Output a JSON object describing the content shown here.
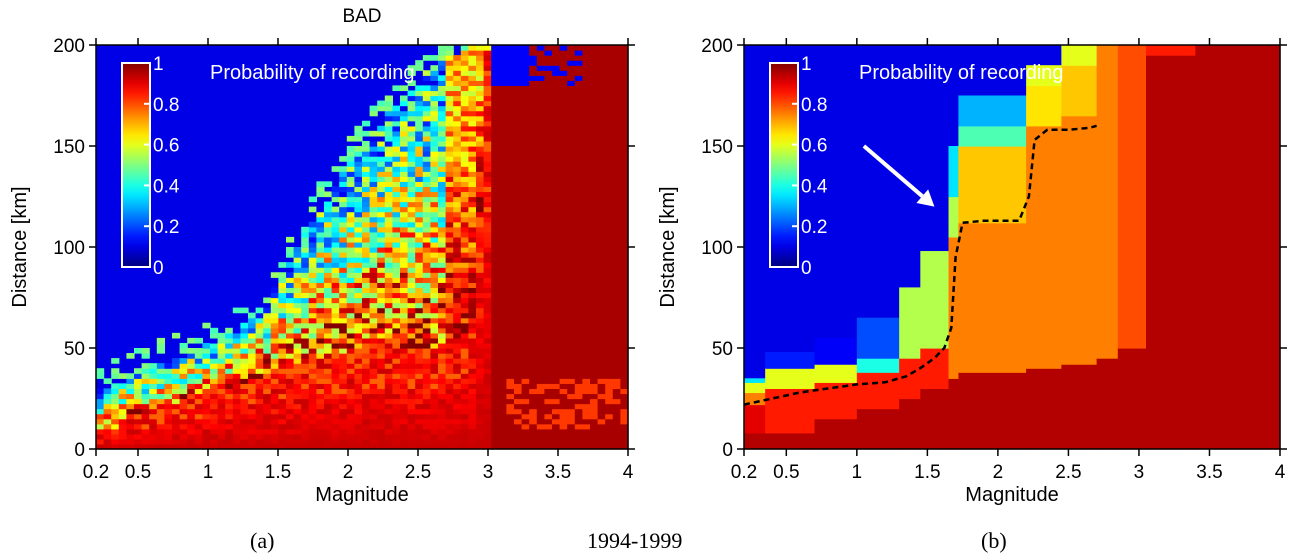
{
  "figure": {
    "caption_left": "(a)",
    "caption_center": "1994-1999",
    "caption_right": "(b)"
  },
  "chart_data": [
    {
      "type": "heatmap",
      "title": "BAD",
      "xlabel": "Magnitude",
      "ylabel": "Distance [km]",
      "annotation": "Probability of recording",
      "xlim": [
        0.2,
        4
      ],
      "ylim": [
        0,
        200
      ],
      "xticks": [
        0.2,
        0.5,
        1,
        1.5,
        2,
        2.5,
        3,
        3.5,
        4
      ],
      "xtick_labels": [
        "0.2",
        "0.5",
        "1",
        "1.5",
        "2",
        "2.5",
        "3",
        "3.5",
        "4"
      ],
      "yticks": [
        0,
        50,
        100,
        150,
        200
      ],
      "ytick_labels": [
        "0",
        "50",
        "100",
        "150",
        "200"
      ],
      "colorbar": {
        "range": [
          0,
          1
        ],
        "ticks": [
          0,
          0.2,
          0.4,
          0.6,
          0.8,
          1
        ],
        "labels": [
          "0",
          "0.2",
          "0.4",
          "0.6",
          "0.8",
          "1"
        ],
        "colormap": "jet"
      },
      "surface": {
        "grid": [
          70,
          80
        ],
        "noisy": true,
        "transition": {
          "m": [
            0.2,
            0.6,
            1.0,
            1.4,
            1.8,
            2.2,
            2.6,
            2.9,
            3.0,
            4.0
          ],
          "lower_km": [
            6,
            20,
            28,
            36,
            45,
            52,
            50,
            60,
            200,
            200
          ],
          "upper_km": [
            28,
            40,
            52,
            70,
            120,
            160,
            190,
            200,
            200,
            200
          ]
        }
      }
    },
    {
      "type": "heatmap",
      "title": "",
      "xlabel": "Magnitude",
      "ylabel": "Distance [km]",
      "annotation": "Probability of recording",
      "xlim": [
        0.2,
        4
      ],
      "ylim": [
        0,
        200
      ],
      "xticks": [
        0.2,
        0.5,
        1,
        1.5,
        2,
        2.5,
        3,
        3.5,
        4
      ],
      "xtick_labels": [
        "0.2",
        "0.5",
        "1",
        "1.5",
        "2",
        "2.5",
        "3",
        "3.5",
        "4"
      ],
      "yticks": [
        0,
        50,
        100,
        150,
        200
      ],
      "ytick_labels": [
        "0",
        "50",
        "100",
        "150",
        "200"
      ],
      "colorbar": {
        "range": [
          0,
          1
        ],
        "ticks": [
          0,
          0.2,
          0.4,
          0.6,
          0.8,
          1
        ],
        "labels": [
          "0",
          "0.2",
          "0.4",
          "0.6",
          "0.8",
          "1"
        ],
        "colormap": "jet"
      },
      "columns": [
        {
          "m0": 0.2,
          "m1": 0.35,
          "bands": [
            [
              0,
              8,
              0.95
            ],
            [
              8,
              22,
              0.9
            ],
            [
              22,
              28,
              0.75
            ],
            [
              28,
              33,
              0.6
            ],
            [
              33,
              35,
              0.35
            ]
          ]
        },
        {
          "m0": 0.35,
          "m1": 0.7,
          "bands": [
            [
              0,
              8,
              0.95
            ],
            [
              8,
              30,
              0.85
            ],
            [
              30,
              40,
              0.6
            ],
            [
              40,
              48,
              0.15
            ]
          ]
        },
        {
          "m0": 0.7,
          "m1": 1.0,
          "bands": [
            [
              0,
              15,
              0.95
            ],
            [
              15,
              33,
              0.85
            ],
            [
              33,
              42,
              0.6
            ],
            [
              42,
              55,
              0.12
            ]
          ]
        },
        {
          "m0": 1.0,
          "m1": 1.3,
          "bands": [
            [
              0,
              20,
              0.95
            ],
            [
              20,
              38,
              0.85
            ],
            [
              38,
              45,
              0.4
            ],
            [
              45,
              65,
              0.2
            ]
          ]
        },
        {
          "m0": 1.3,
          "m1": 1.45,
          "bands": [
            [
              0,
              25,
              0.95
            ],
            [
              25,
              45,
              0.85
            ],
            [
              45,
              80,
              0.55
            ]
          ]
        },
        {
          "m0": 1.45,
          "m1": 1.65,
          "bands": [
            [
              0,
              30,
              0.95
            ],
            [
              30,
              50,
              0.85
            ],
            [
              50,
              98,
              0.55
            ]
          ]
        },
        {
          "m0": 1.65,
          "m1": 1.72,
          "bands": [
            [
              0,
              35,
              0.95
            ],
            [
              35,
              105,
              0.75
            ],
            [
              105,
              125,
              0.55
            ],
            [
              125,
              150,
              0.35
            ]
          ]
        },
        {
          "m0": 1.72,
          "m1": 2.2,
          "bands": [
            [
              0,
              38,
              0.95
            ],
            [
              38,
              112,
              0.75
            ],
            [
              112,
              150,
              0.68
            ],
            [
              150,
              160,
              0.45
            ],
            [
              160,
              175,
              0.3
            ]
          ]
        },
        {
          "m0": 2.2,
          "m1": 2.45,
          "bands": [
            [
              0,
              40,
              0.95
            ],
            [
              40,
              160,
              0.75
            ],
            [
              160,
              180,
              0.65
            ],
            [
              180,
              190,
              0.6
            ]
          ]
        },
        {
          "m0": 2.45,
          "m1": 2.7,
          "bands": [
            [
              0,
              42,
              0.95
            ],
            [
              42,
              165,
              0.75
            ],
            [
              165,
              190,
              0.68
            ],
            [
              190,
              200,
              0.6
            ]
          ]
        },
        {
          "m0": 2.7,
          "m1": 2.85,
          "bands": [
            [
              0,
              45,
              0.95
            ],
            [
              45,
              200,
              0.75
            ]
          ]
        },
        {
          "m0": 2.85,
          "m1": 3.05,
          "bands": [
            [
              0,
              50,
              0.95
            ],
            [
              50,
              200,
              0.8
            ]
          ]
        },
        {
          "m0": 3.05,
          "m1": 3.4,
          "bands": [
            [
              0,
              195,
              0.95
            ],
            [
              195,
              200,
              0.85
            ]
          ]
        },
        {
          "m0": 3.4,
          "m1": 4.0,
          "bands": [
            [
              0,
              200,
              0.95
            ]
          ]
        }
      ],
      "dashed_curve": {
        "m": [
          0.2,
          0.4,
          0.6,
          0.8,
          1.0,
          1.2,
          1.35,
          1.45,
          1.55,
          1.62,
          1.67,
          1.7,
          1.75,
          1.9,
          2.15,
          2.22,
          2.26,
          2.35,
          2.5,
          2.65,
          2.7
        ],
        "km": [
          22,
          25,
          28,
          30,
          32,
          33,
          36,
          40,
          45,
          50,
          60,
          95,
          112,
          113,
          113,
          125,
          153,
          158,
          158,
          159,
          160
        ]
      },
      "arrow": {
        "from_m": 1.05,
        "from_km": 150,
        "to_m": 1.55,
        "to_km": 120
      }
    }
  ]
}
